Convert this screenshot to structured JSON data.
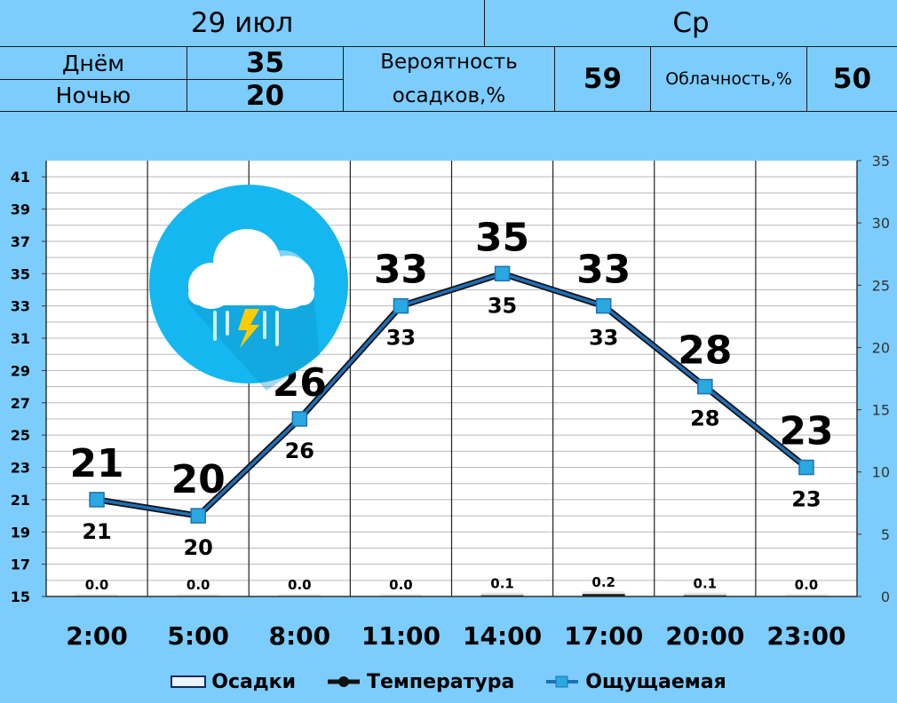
{
  "header": {
    "date": "29 июл",
    "weekday": "Ср",
    "day_label": "Днём",
    "day_value": "35",
    "night_label": "Ночью",
    "night_value": "20",
    "precip_label_1": "Вероятность",
    "precip_label_2": "осадков,%",
    "precip_value": "59",
    "cloud_label": "Облачность,%",
    "cloud_value": "50"
  },
  "icon": "thunderstorm-rain-icon",
  "colors": {
    "background": "#7ccdfd",
    "plot_bg": "#ffffff",
    "feels_line": "#1e6fb8",
    "temp_line": "#111111",
    "marker": "#29a9e0",
    "icon_circle": "#15b7f0"
  },
  "chart_data": {
    "type": "line",
    "categories": [
      "2:00",
      "5:00",
      "8:00",
      "11:00",
      "14:00",
      "17:00",
      "20:00",
      "23:00"
    ],
    "series": [
      {
        "name": "Температура",
        "values": [
          21,
          20,
          26,
          33,
          35,
          33,
          28,
          23
        ],
        "axis": "left"
      },
      {
        "name": "Ощущаемая",
        "values": [
          21,
          20,
          26,
          33,
          35,
          33,
          28,
          23
        ],
        "axis": "left"
      },
      {
        "name": "Осадки",
        "values": [
          0.0,
          0.0,
          0.0,
          0.0,
          0.1,
          0.2,
          0.1,
          0.0
        ],
        "axis": "right",
        "type": "bar"
      }
    ],
    "temp_labels": [
      "21",
      "20",
      "26",
      "33",
      "35",
      "33",
      "28",
      "23"
    ],
    "feels_labels": [
      "21",
      "20",
      "26",
      "33",
      "35",
      "33",
      "28",
      "23"
    ],
    "precip_labels": [
      "0.0",
      "0.0",
      "0.0",
      "0.0",
      "0.1",
      "0.2",
      "0.1",
      "0.0"
    ],
    "y_left": {
      "min": 15,
      "max": 42,
      "ticks": [
        "15",
        "17",
        "19",
        "21",
        "23",
        "25",
        "27",
        "29",
        "31",
        "33",
        "35",
        "37",
        "39",
        "41"
      ]
    },
    "y_right": {
      "min": 0,
      "max": 35,
      "ticks": [
        "0",
        "5",
        "10",
        "15",
        "20",
        "25",
        "30",
        "35"
      ]
    },
    "grid": true,
    "legend_position": "bottom"
  },
  "legend": [
    "Осадки",
    "Температура",
    "Ощущаемая"
  ]
}
